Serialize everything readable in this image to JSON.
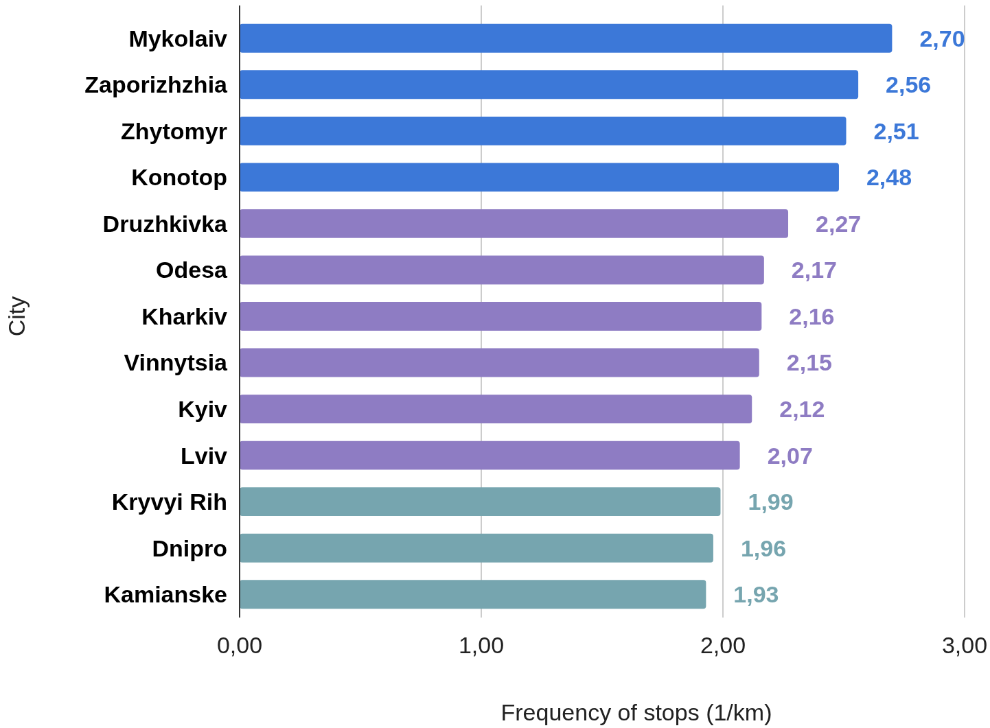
{
  "chart_data": {
    "type": "bar",
    "orientation": "horizontal",
    "xlabel": "Frequency of stops (1/km)",
    "ylabel": "City",
    "categories": [
      "Mykolaiv",
      "Zaporizhzhia",
      "Zhytomyr",
      "Konotop",
      "Druzhkivka",
      "Odesa",
      "Kharkiv",
      "Vinnytsia",
      "Kyiv",
      "Lviv",
      "Kryvyi Rih",
      "Dnipro",
      "Kamianske"
    ],
    "values": [
      2.7,
      2.56,
      2.51,
      2.48,
      2.27,
      2.17,
      2.16,
      2.15,
      2.12,
      2.07,
      1.99,
      1.96,
      1.93
    ],
    "value_labels": [
      "2,70",
      "2,56",
      "2,51",
      "2,48",
      "2,27",
      "2,17",
      "2,16",
      "2,15",
      "2,12",
      "2,07",
      "1,99",
      "1,96",
      "1,93"
    ],
    "colors": [
      "#3c78d8",
      "#3c78d8",
      "#3c78d8",
      "#3c78d8",
      "#8e7cc3",
      "#8e7cc3",
      "#8e7cc3",
      "#8e7cc3",
      "#8e7cc3",
      "#8e7cc3",
      "#76a5af",
      "#76a5af",
      "#76a5af"
    ],
    "xlim": [
      0,
      3
    ],
    "xticks": [
      {
        "value": 0,
        "label": "0,00"
      },
      {
        "value": 1,
        "label": "1,00"
      },
      {
        "value": 2,
        "label": "2,00"
      },
      {
        "value": 3,
        "label": "3,00"
      }
    ],
    "grid": "x"
  }
}
